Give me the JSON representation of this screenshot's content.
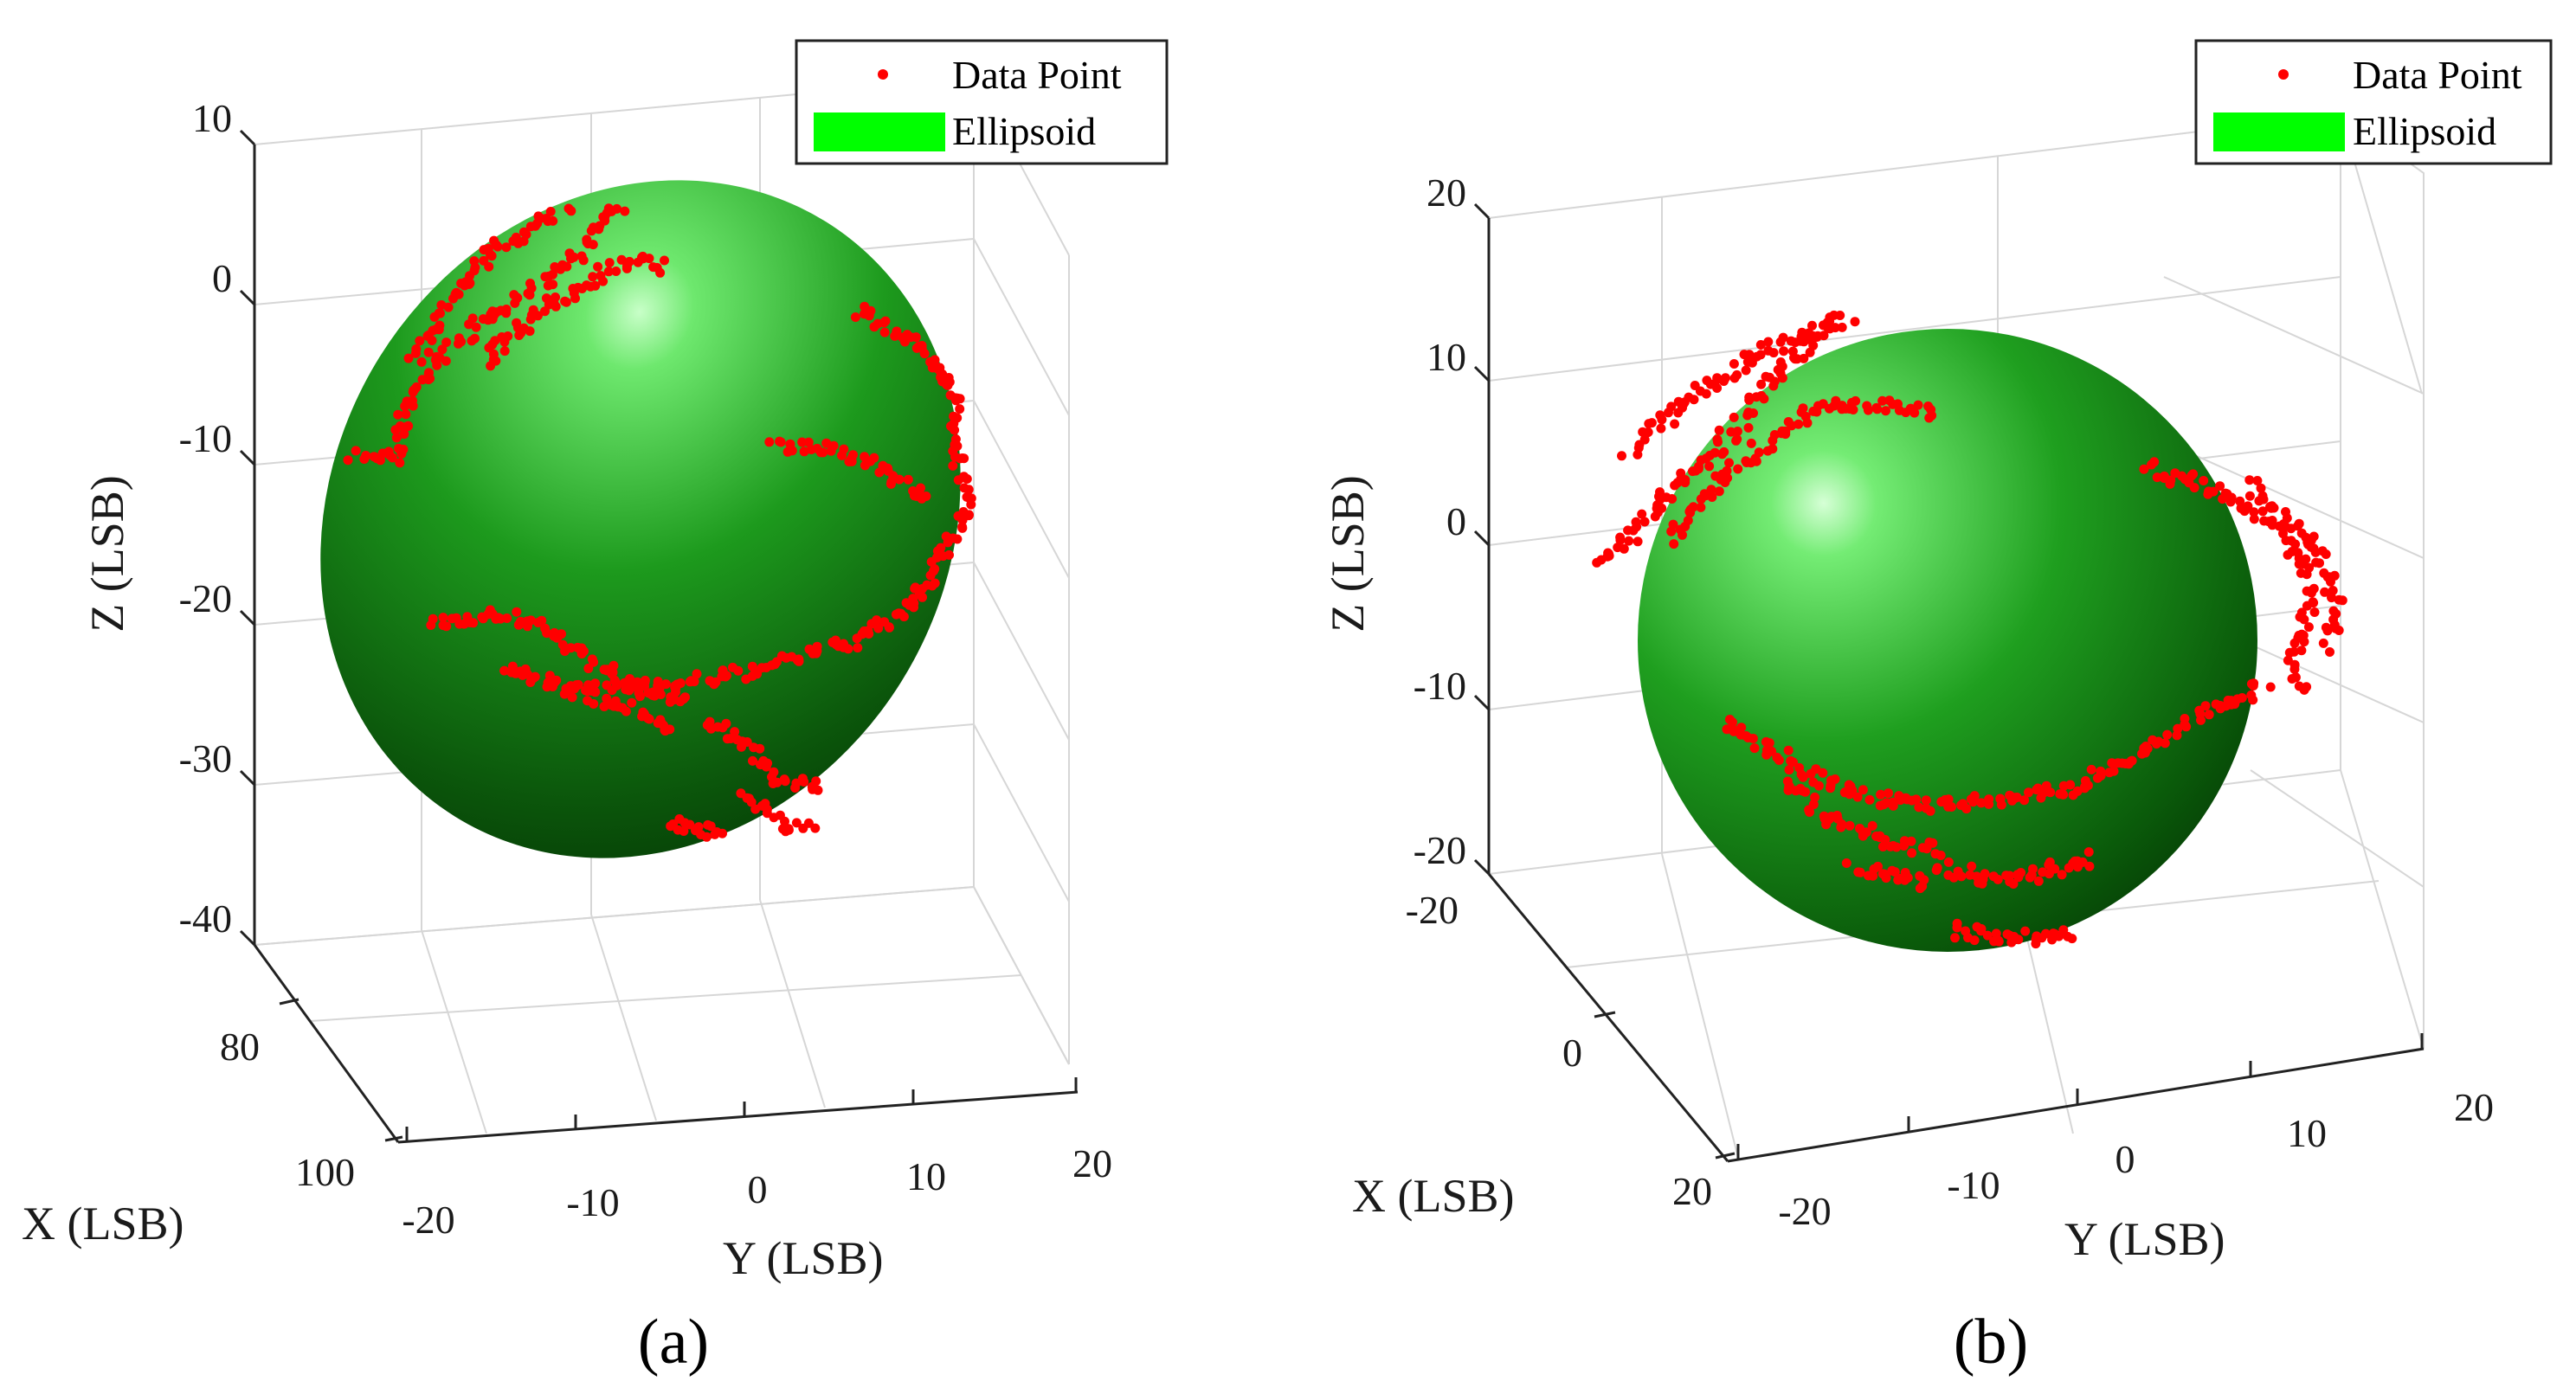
{
  "chart_data": [
    {
      "type": "scatter3d",
      "panel_label": "(a)",
      "xlabel": "X (LSB)",
      "ylabel": "Y (LSB)",
      "zlabel": "Z (LSB)",
      "xlim": [
        70,
        100
      ],
      "ylim": [
        -20,
        20
      ],
      "zlim": [
        -40,
        10
      ],
      "xticks": [
        80,
        100
      ],
      "yticks": [
        -20,
        -10,
        0,
        10,
        20
      ],
      "zticks": [
        10,
        0,
        -10,
        -20,
        -30,
        -40
      ],
      "series": [
        {
          "name": "Data Point",
          "kind": "points",
          "color": "#ff0000"
        },
        {
          "name": "Ellipsoid",
          "kind": "surface",
          "color": "#00ff00"
        }
      ],
      "ellipsoid_center": [
        88,
        3,
        -14
      ],
      "grid": true,
      "legend": "top-right"
    },
    {
      "type": "scatter3d",
      "panel_label": "(b)",
      "xlabel": "X (LSB)",
      "ylabel": "Y (LSB)",
      "zlabel": "Z (LSB)",
      "xlim": [
        -20,
        20
      ],
      "ylim": [
        -20,
        20
      ],
      "zlim": [
        -20,
        20
      ],
      "xticks": [
        -20,
        0,
        20
      ],
      "yticks": [
        -20,
        -10,
        0,
        10,
        20
      ],
      "zticks": [
        20,
        10,
        0,
        -10,
        -20
      ],
      "series": [
        {
          "name": "Data Point",
          "kind": "points",
          "color": "#ff0000"
        },
        {
          "name": "Ellipsoid",
          "kind": "surface",
          "color": "#00ff00"
        }
      ],
      "ellipsoid_center": [
        0,
        0,
        0
      ],
      "grid": true,
      "legend": "top-right"
    }
  ],
  "colors": {
    "point": "#ff0000",
    "ellipsoid_light": "#7dff7d",
    "ellipsoid_mid": "#1fa81f",
    "ellipsoid_dark": "#0a4a0a",
    "legend_swatch": "#00ff00"
  }
}
